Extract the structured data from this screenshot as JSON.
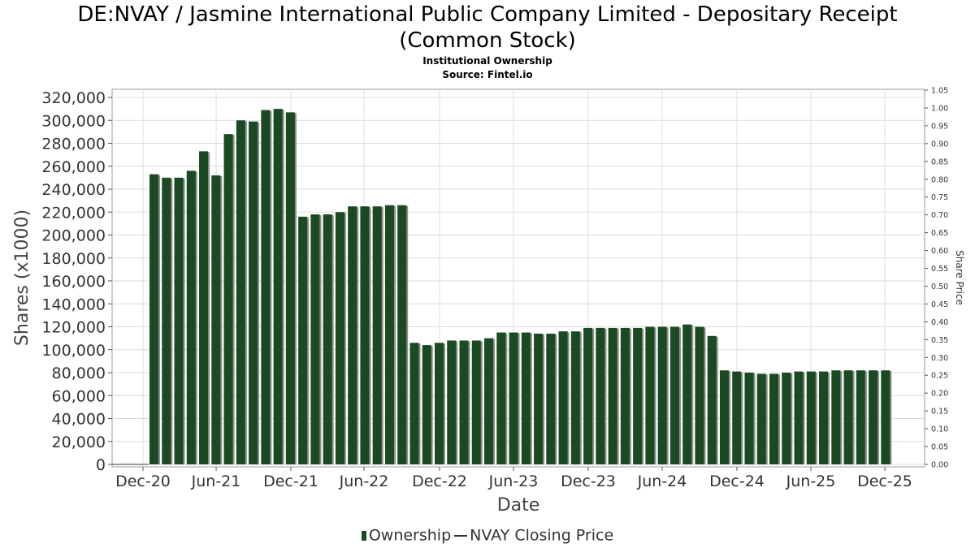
{
  "chart_data": {
    "type": "bar",
    "title": "DE:NVAY / Jasmine International Public Company Limited - Depositary Receipt",
    "title_line2": "(Common Stock)",
    "subtitle": "Institutional Ownership",
    "source": "Source: Fintel.io",
    "xlabel": "Date",
    "ylabel": "Shares (x1000)",
    "y2label": "Share Price",
    "ylim": [
      0,
      330000
    ],
    "y2lim": [
      0,
      1.05
    ],
    "grid": true,
    "x_ticks": [
      "Dec-20",
      "Jun-21",
      "Dec-21",
      "Jun-22",
      "Dec-22",
      "Jun-23",
      "Dec-23",
      "Jun-24",
      "Dec-24",
      "Jun-25",
      "Dec-25"
    ],
    "y_ticks": [
      "0",
      "20,000",
      "40,000",
      "60,000",
      "80,000",
      "100,000",
      "120,000",
      "140,000",
      "160,000",
      "180,000",
      "200,000",
      "220,000",
      "240,000",
      "260,000",
      "280,000",
      "300,000",
      "320,000"
    ],
    "y2_ticks": [
      "0.00",
      "0.05",
      "0.10",
      "0.15",
      "0.20",
      "0.25",
      "0.30",
      "0.35",
      "0.40",
      "0.45",
      "0.50",
      "0.55",
      "0.60",
      "0.65",
      "0.70",
      "0.75",
      "0.80",
      "0.85",
      "0.90",
      "0.95",
      "1.00",
      "1.05"
    ],
    "series": [
      {
        "name": "Ownership",
        "values": [
          253000,
          250000,
          250000,
          256000,
          273000,
          252000,
          288000,
          300000,
          299000,
          309000,
          310000,
          307000,
          216000,
          218000,
          218000,
          220000,
          225000,
          225000,
          225000,
          226000,
          226000,
          106000,
          104000,
          106000,
          108000,
          108000,
          108000,
          110000,
          115000,
          115000,
          115000,
          114000,
          114000,
          116000,
          116000,
          119000,
          119000,
          119000,
          119000,
          119000,
          120000,
          120000,
          120000,
          122000,
          120000,
          112000,
          82000,
          81000,
          80000,
          79000,
          79000,
          80000,
          81000,
          81000,
          81000,
          82000,
          82000,
          82000,
          82000,
          82000
        ]
      },
      {
        "name": "NVAY Closing Price",
        "values": []
      }
    ]
  },
  "legend": {
    "ownership": "Ownership",
    "price": "NVAY Closing Price"
  },
  "colors": {
    "bar": "#1b4a22",
    "bar_shadow": "#8c8c8c",
    "grid": "#dcdcdc",
    "axis": "#555555"
  }
}
